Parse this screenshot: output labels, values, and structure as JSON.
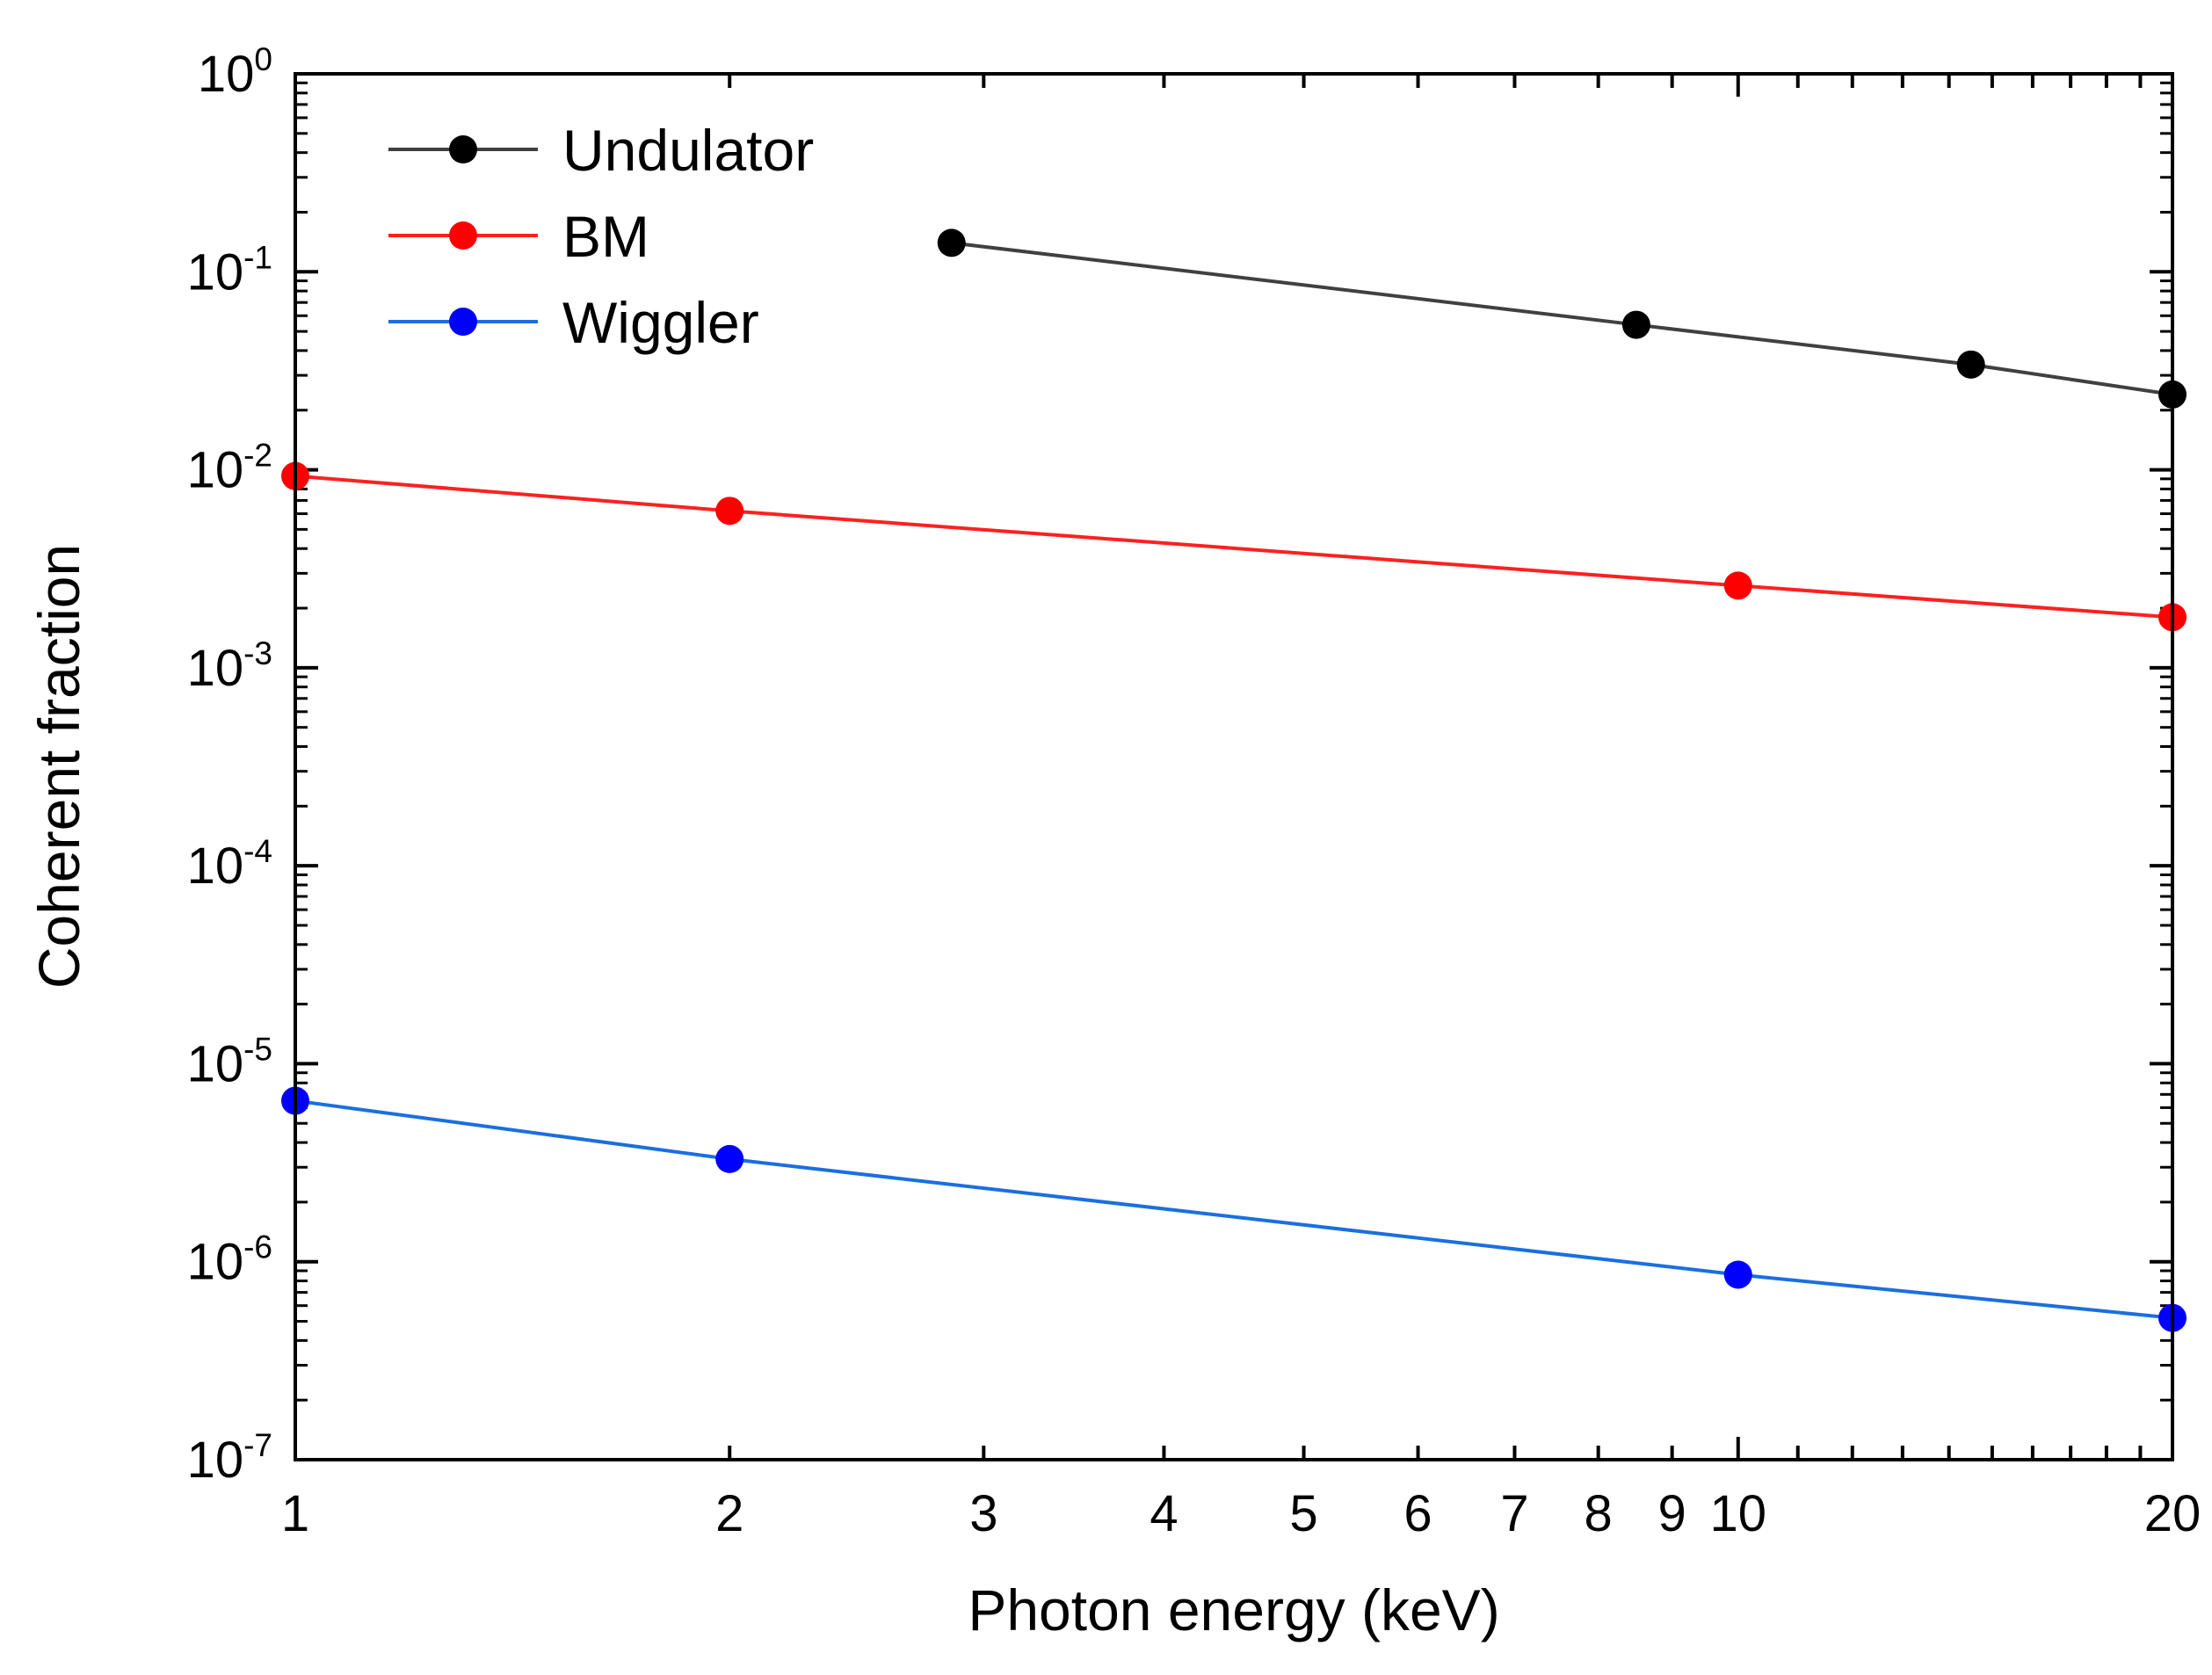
{
  "chart_data": {
    "type": "line",
    "title": "",
    "xlabel": "Photon energy (keV)",
    "ylabel": "Coherent fraction",
    "xscale": "log",
    "yscale": "log",
    "xlim": [
      1,
      20
    ],
    "ylim": [
      1e-07,
      1
    ],
    "grid": false,
    "legend_position": "top-left",
    "x_tick_labels": [
      "1",
      "2",
      "3",
      "4",
      "5",
      "6",
      "7",
      "8",
      "9",
      "10",
      "20"
    ],
    "y_ticks": [
      {
        "value": 1e-07,
        "base": "10",
        "exp": "-7"
      },
      {
        "value": 1e-06,
        "base": "10",
        "exp": "-6"
      },
      {
        "value": 1e-05,
        "base": "10",
        "exp": "-5"
      },
      {
        "value": 0.0001,
        "base": "10",
        "exp": "-4"
      },
      {
        "value": 0.001,
        "base": "10",
        "exp": "-3"
      },
      {
        "value": 0.01,
        "base": "10",
        "exp": "-2"
      },
      {
        "value": 0.1,
        "base": "10",
        "exp": "-1"
      },
      {
        "value": 1,
        "base": "10",
        "exp": "0"
      }
    ],
    "series": [
      {
        "name": "Undulator",
        "color": "#000000",
        "line_color": "#404040",
        "x": [
          2.85,
          8.5,
          14.5,
          20
        ],
        "y": [
          0.14,
          0.054,
          0.034,
          0.024
        ]
      },
      {
        "name": "BM",
        "color": "#ff0000",
        "line_color": "#ff2020",
        "x": [
          1,
          2,
          10,
          20
        ],
        "y": [
          0.0093,
          0.0062,
          0.0026,
          0.0018
        ]
      },
      {
        "name": "Wiggler",
        "color": "#0000ff",
        "line_color": "#1a6fe0",
        "x": [
          1,
          2,
          10,
          20
        ],
        "y": [
          6.5e-06,
          3.3e-06,
          8.6e-07,
          5.2e-07
        ]
      }
    ]
  }
}
